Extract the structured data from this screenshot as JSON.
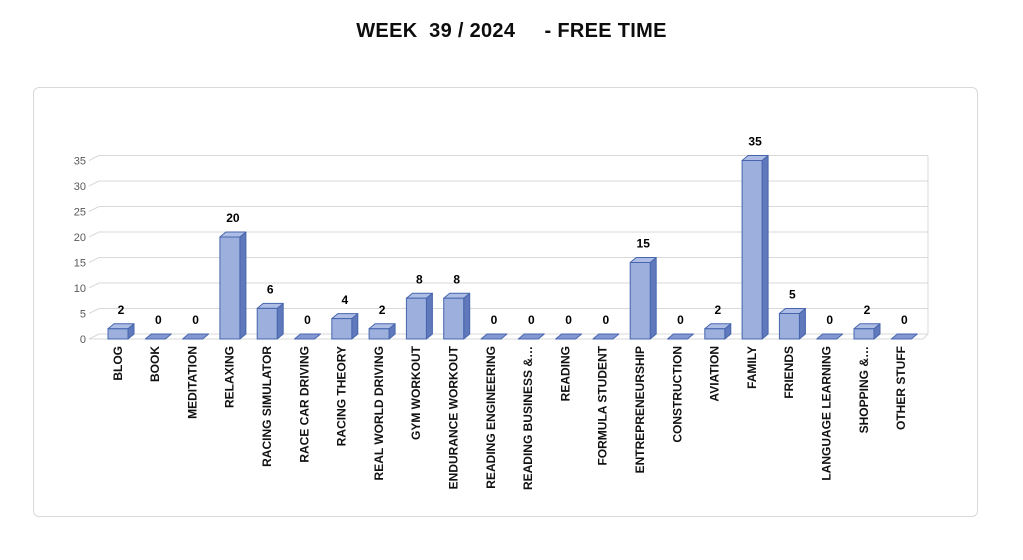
{
  "page": {
    "title": "WEEK  39 / 2024     - FREE TIME"
  },
  "chart_data": {
    "type": "bar",
    "style": "excel-3d-clustered-column",
    "title": "WEEK  39 / 2024     - FREE TIME",
    "categories": [
      "BLOG",
      "BOOK",
      "MEDITATION",
      "RELAXING",
      "RACING SIMULATOR",
      "RACE CAR DRIVING",
      "RACING THEORY",
      "REAL WORLD DRIVING",
      "GYM WORKOUT",
      "ENDURANCE WORKOUT",
      "READING ENGINEERING",
      "READING BUSINESS &…",
      "READING",
      "FORMULA STUDENT",
      "ENTREPRENEURSHIP",
      "CONSTRUCTION",
      "AVIATION",
      "FAMILY",
      "FRIENDS",
      "LANGUAGE LEARNING",
      "SHOPPING &…",
      "OTHER STUFF"
    ],
    "values": [
      2,
      0,
      0,
      20,
      6,
      0,
      4,
      2,
      8,
      8,
      0,
      0,
      0,
      0,
      15,
      0,
      2,
      35,
      5,
      0,
      2,
      0
    ],
    "data_labels_shown": true,
    "xlabel": "",
    "ylabel": "",
    "ylim": [
      0,
      35
    ],
    "yticks": [
      0,
      5,
      10,
      15,
      20,
      25,
      30,
      35
    ],
    "grid": true,
    "legend": false,
    "colors": {
      "bar_front": "#9cafdd",
      "bar_side": "#6078bc",
      "bar_top": "#aebde5",
      "bar_zero": "#8398d2",
      "bar_border": "#4766ad",
      "gridline": "#d9d9d9",
      "axis_labels": "#595959",
      "data_label": "#000000",
      "category_label": "#111111",
      "frame_border": "#d9d9d9",
      "background": "#ffffff"
    }
  }
}
